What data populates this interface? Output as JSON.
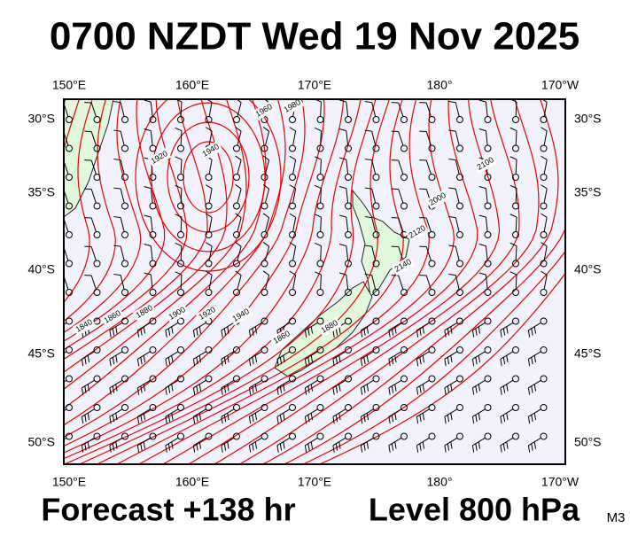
{
  "header": {
    "title": "0700 NZDT Wed 19 Nov 2025"
  },
  "footer": {
    "forecast": "Forecast +138 hr",
    "level": "Level 800 hPa",
    "model": "M3"
  },
  "map": {
    "lon_labels": [
      "150°E",
      "160°E",
      "170°E",
      "180°",
      "170°W"
    ],
    "lat_labels": [
      "30°S",
      "35°S",
      "40°S",
      "45°S",
      "50°S"
    ],
    "contour_labels": [
      "1840",
      "1860",
      "1880",
      "1900",
      "1920",
      "1940",
      "1860",
      "1880",
      "1920",
      "1940",
      "1960",
      "1980",
      "2000",
      "2100",
      "2120",
      "2140"
    ]
  }
}
